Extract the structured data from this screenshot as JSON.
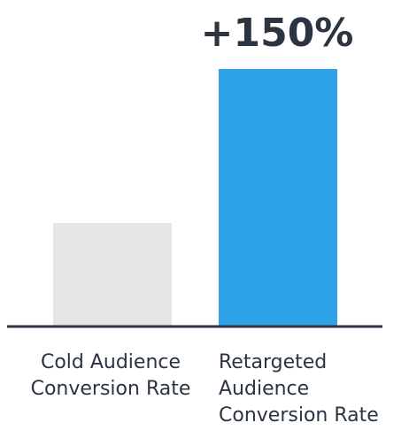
{
  "chart_data": {
    "type": "bar",
    "categories": [
      [
        "Cold Audience",
        "Conversion Rate"
      ],
      [
        "Retargeted",
        "Audience",
        "Conversion Rate"
      ]
    ],
    "values": [
      1,
      2.5
    ],
    "ylim": [
      0,
      2.5
    ],
    "annotation": "+150%",
    "colors": [
      "#e6e6e6",
      "#2ea3e8"
    ],
    "axis_color": "#2b3440",
    "grid": false
  }
}
